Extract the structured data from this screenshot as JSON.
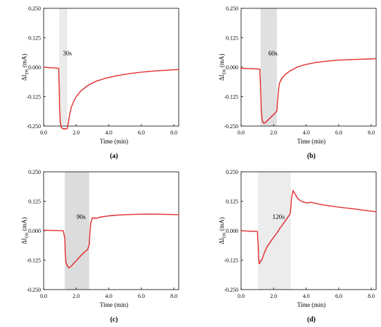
{
  "chart_data": [
    {
      "type": "scatter",
      "panel_label": "(a)",
      "annotation": "30s",
      "xlabel": "Time (min)",
      "ylabel_main": "ΔI",
      "ylabel_sub": "DS",
      "ylabel_unit": " (mA)",
      "xlim": [
        0,
        8.3
      ],
      "ylim": [
        -0.25,
        0.25
      ],
      "xticks": [
        "0.0",
        "2.0",
        "4.0",
        "6.0",
        "8.0"
      ],
      "yticks": [
        "0.250",
        "0.125",
        "0.000",
        "-0.125",
        "-0.250"
      ],
      "shade": [
        0.95,
        1.45
      ],
      "shade_color": "#ebebeb",
      "series": [
        {
          "color": "#e03030",
          "x": [
            0.0,
            0.4,
            0.8,
            0.92,
            0.95,
            0.98,
            1.02,
            1.08,
            1.15,
            1.25,
            1.35,
            1.45,
            1.52,
            1.6,
            1.7,
            1.85,
            2.0,
            2.3,
            2.7,
            3.2,
            3.8,
            4.5,
            5.2,
            6.0,
            7.0,
            8.3
          ],
          "y": [
            0.0,
            -0.002,
            -0.004,
            -0.005,
            -0.07,
            -0.17,
            -0.23,
            -0.255,
            -0.26,
            -0.262,
            -0.262,
            -0.26,
            -0.235,
            -0.2,
            -0.17,
            -0.145,
            -0.125,
            -0.1,
            -0.078,
            -0.06,
            -0.047,
            -0.036,
            -0.028,
            -0.021,
            -0.015,
            -0.01
          ]
        }
      ]
    },
    {
      "type": "scatter",
      "panel_label": "(b)",
      "annotation": "60s",
      "xlabel": "Time (min)",
      "ylabel_main": "ΔI",
      "ylabel_sub": "DS",
      "ylabel_unit": " (mA)",
      "xlim": [
        0,
        8.3
      ],
      "ylim": [
        -0.25,
        0.25
      ],
      "xticks": [
        "0.0",
        "2.0",
        "4.0",
        "6.0",
        "8.0"
      ],
      "yticks": [
        "0.250",
        "0.125",
        "0.000",
        "-0.125",
        "-0.250"
      ],
      "shade": [
        1.2,
        2.2
      ],
      "shade_color": "#e0e0e0",
      "series": [
        {
          "color": "#e03030",
          "x": [
            0.0,
            0.6,
            1.15,
            1.2,
            1.23,
            1.27,
            1.32,
            1.4,
            1.5,
            1.6,
            1.75,
            1.9,
            2.05,
            2.2,
            2.27,
            2.35,
            2.5,
            2.7,
            3.0,
            3.5,
            4.0,
            4.6,
            5.3,
            6.0,
            7.0,
            8.3
          ],
          "y": [
            -0.005,
            -0.006,
            -0.008,
            -0.09,
            -0.16,
            -0.21,
            -0.23,
            -0.238,
            -0.235,
            -0.228,
            -0.218,
            -0.208,
            -0.198,
            -0.185,
            -0.12,
            -0.07,
            -0.048,
            -0.032,
            -0.016,
            0.002,
            0.012,
            0.02,
            0.026,
            0.03,
            0.033,
            0.036
          ]
        }
      ]
    },
    {
      "type": "scatter",
      "panel_label": "(c)",
      "annotation": "90s",
      "xlabel": "Time (min)",
      "ylabel_main": "ΔI",
      "ylabel_sub": "DS",
      "ylabel_unit": " (mA)",
      "xlim": [
        0,
        8.3
      ],
      "ylim": [
        -0.25,
        0.25
      ],
      "xticks": [
        "0.0",
        "2.0",
        "4.0",
        "6.0",
        "8.0"
      ],
      "yticks": [
        "0.250",
        "0.125",
        "0.000",
        "-0.125",
        "-0.250"
      ],
      "shade": [
        1.3,
        2.8
      ],
      "shade_color": "#dcdcdc",
      "series": [
        {
          "color": "#e03030",
          "x": [
            0.0,
            0.6,
            1.2,
            1.3,
            1.33,
            1.37,
            1.45,
            1.55,
            1.7,
            1.9,
            2.1,
            2.3,
            2.5,
            2.7,
            2.8,
            2.85,
            2.9,
            3.0,
            3.2,
            3.5,
            4.0,
            4.5,
            5.0,
            6.0,
            7.0,
            8.3
          ],
          "y": [
            0.002,
            0.001,
            0.0,
            -0.03,
            -0.1,
            -0.135,
            -0.148,
            -0.158,
            -0.15,
            -0.135,
            -0.12,
            -0.105,
            -0.092,
            -0.08,
            -0.06,
            0.0,
            0.035,
            0.055,
            0.052,
            0.058,
            0.063,
            0.066,
            0.068,
            0.07,
            0.07,
            0.068
          ]
        }
      ]
    },
    {
      "type": "scatter",
      "panel_label": "(d)",
      "annotation": "120s",
      "xlabel": "Time (min)",
      "ylabel_main": "ΔI",
      "ylabel_sub": "DS",
      "ylabel_unit": " (mA)",
      "xlim": [
        0,
        8.3
      ],
      "ylim": [
        -0.25,
        0.25
      ],
      "xticks": [
        "0.0",
        "2.0",
        "4.0",
        "6.0",
        "8.0"
      ],
      "yticks": [
        "0.250",
        "0.125",
        "0.000",
        "-0.125",
        "-0.250"
      ],
      "shade": [
        1.05,
        3.05
      ],
      "shade_color": "#ececec",
      "series": [
        {
          "color": "#e03030",
          "x": [
            0.0,
            0.5,
            1.0,
            1.05,
            1.08,
            1.12,
            1.2,
            1.3,
            1.45,
            1.6,
            1.8,
            2.0,
            2.2,
            2.4,
            2.6,
            2.8,
            3.0,
            3.05,
            3.1,
            3.2,
            3.35,
            3.5,
            3.7,
            4.0,
            4.3,
            5.0,
            6.0,
            7.0,
            8.3
          ],
          "y": [
            0.0,
            -0.002,
            -0.003,
            -0.06,
            -0.12,
            -0.14,
            -0.13,
            -0.12,
            -0.09,
            -0.068,
            -0.048,
            -0.028,
            -0.01,
            0.012,
            0.03,
            0.05,
            0.07,
            0.09,
            0.14,
            0.17,
            0.152,
            0.135,
            0.125,
            0.118,
            0.12,
            0.11,
            0.1,
            0.092,
            0.08
          ]
        }
      ]
    }
  ]
}
